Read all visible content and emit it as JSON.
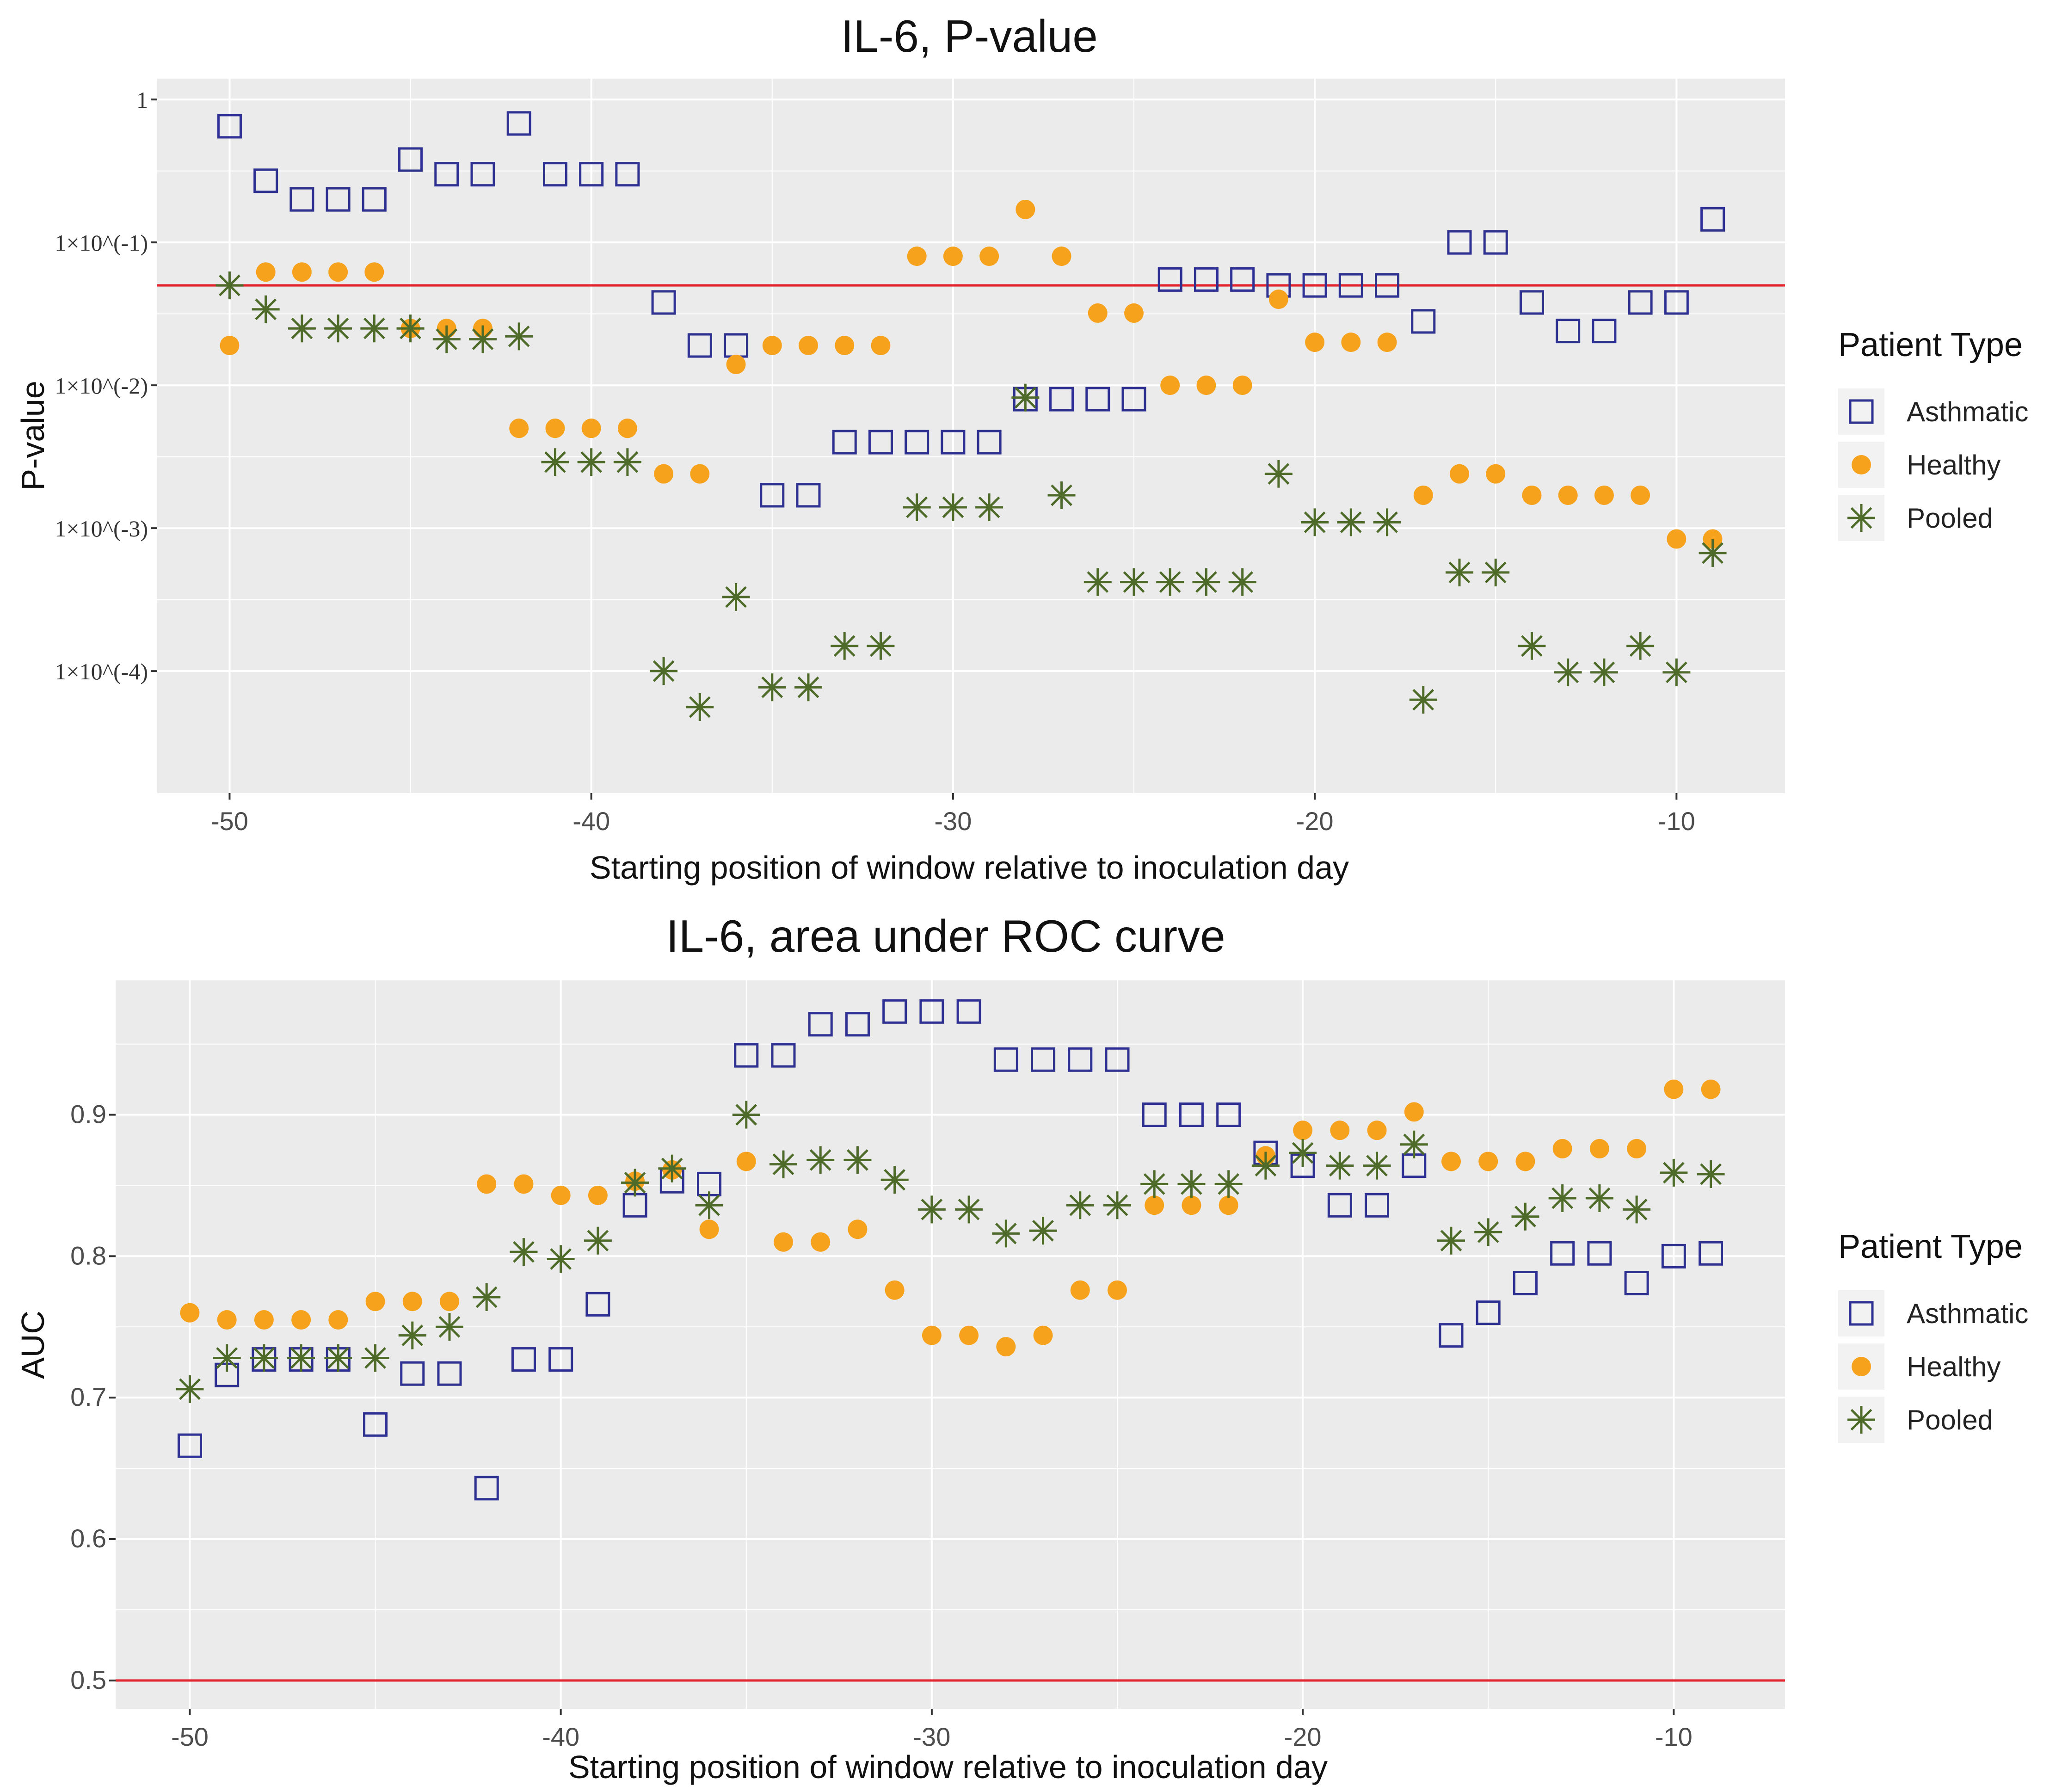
{
  "colors": {
    "panel": "#ebebeb",
    "grid_major": "#ffffff",
    "reference_line": "#e3262d",
    "asthmatic": "#2e3192",
    "healthy": "#f7a21d",
    "pooled": "#4f6b2a"
  },
  "legend": {
    "title": "Patient Type",
    "items": [
      {
        "label": "Asthmatic",
        "marker": "open-square-icon",
        "color": "#2e3192"
      },
      {
        "label": "Healthy",
        "marker": "filled-circle-icon",
        "color": "#f7a21d"
      },
      {
        "label": "Pooled",
        "marker": "asterisk-icon",
        "color": "#4f6b2a"
      }
    ]
  },
  "chart_data": [
    {
      "type": "scatter",
      "title": "IL-6, P-value",
      "xlabel": "Starting position of window relative to inoculation day",
      "ylabel": "P-value",
      "y_scale": "log10",
      "xlim": [
        -52,
        -7
      ],
      "ylim": [
        1.4e-05,
        1.4
      ],
      "x_ticks": [
        -50,
        -40,
        -30,
        -20,
        -10
      ],
      "x_tick_labels": [
        "-50",
        "-40",
        "-30",
        "-20",
        "-10"
      ],
      "y_ticks": [
        1,
        0.1,
        0.01,
        0.001,
        0.0001
      ],
      "y_tick_labels": [
        "1",
        "1×10^(-1)",
        "1×10^(-2)",
        "1×10^(-3)",
        "1×10^(-4)"
      ],
      "reference_line": {
        "axis": "y",
        "value": 0.05
      },
      "grid": true,
      "legend": "right",
      "series": [
        {
          "name": "Asthmatic",
          "marker": "open-square",
          "x": [
            -50,
            -49,
            -48,
            -47,
            -46,
            -45,
            -44,
            -43,
            -42,
            -41,
            -40,
            -39,
            -38,
            -37,
            -36,
            -35,
            -34,
            -33,
            -32,
            -31,
            -30,
            -29,
            -28,
            -27,
            -26,
            -25,
            -24,
            -23,
            -22,
            -21,
            -20,
            -19,
            -18,
            -17,
            -16,
            -15,
            -14,
            -13,
            -12,
            -11,
            -10,
            -9
          ],
          "y": [
            0.65,
            0.27,
            0.2,
            0.2,
            0.2,
            0.38,
            0.3,
            0.3,
            0.68,
            0.3,
            0.3,
            0.3,
            0.038,
            0.019,
            0.019,
            0.0017,
            0.0017,
            0.004,
            0.004,
            0.004,
            0.004,
            0.004,
            0.008,
            0.008,
            0.008,
            0.008,
            0.055,
            0.055,
            0.055,
            0.05,
            0.05,
            0.05,
            0.05,
            0.028,
            0.1,
            0.1,
            0.038,
            0.024,
            0.024,
            0.038,
            0.038,
            0.145
          ]
        },
        {
          "name": "Healthy",
          "marker": "filled-circle",
          "x": [
            -50,
            -49,
            -48,
            -47,
            -46,
            -45,
            -44,
            -43,
            -42,
            -41,
            -40,
            -39,
            -38,
            -37,
            -36,
            -35,
            -34,
            -33,
            -32,
            -31,
            -30,
            -29,
            -28,
            -27,
            -26,
            -25,
            -24,
            -23,
            -22,
            -21,
            -20,
            -19,
            -18,
            -17,
            -16,
            -15,
            -14,
            -13,
            -12,
            -11,
            -10,
            -9
          ],
          "y": [
            0.019,
            0.062,
            0.062,
            0.062,
            0.062,
            0.025,
            0.025,
            0.025,
            0.005,
            0.005,
            0.005,
            0.005,
            0.0024,
            0.0024,
            0.014,
            0.019,
            0.019,
            0.019,
            0.019,
            0.08,
            0.08,
            0.08,
            0.17,
            0.08,
            0.032,
            0.032,
            0.01,
            0.01,
            0.01,
            0.04,
            0.02,
            0.02,
            0.02,
            0.0017,
            0.0024,
            0.0024,
            0.0017,
            0.0017,
            0.0017,
            0.0017,
            0.00084,
            0.00084
          ]
        },
        {
          "name": "Pooled",
          "marker": "asterisk",
          "x": [
            -50,
            -49,
            -48,
            -47,
            -46,
            -45,
            -44,
            -43,
            -42,
            -41,
            -40,
            -39,
            -38,
            -37,
            -36,
            -35,
            -34,
            -33,
            -32,
            -31,
            -30,
            -29,
            -28,
            -27,
            -26,
            -25,
            -24,
            -23,
            -22,
            -21,
            -20,
            -19,
            -18,
            -17,
            -16,
            -15,
            -14,
            -13,
            -12,
            -11,
            -10,
            -9
          ],
          "y": [
            0.05,
            0.034,
            0.025,
            0.025,
            0.025,
            0.025,
            0.021,
            0.021,
            0.022,
            0.0029,
            0.0029,
            0.0029,
            0.0001,
            5.6e-05,
            0.00033,
            7.7e-05,
            7.7e-05,
            0.00015,
            0.00015,
            0.0014,
            0.0014,
            0.0014,
            0.0082,
            0.0017,
            0.00042,
            0.00042,
            0.00042,
            0.00042,
            0.00042,
            0.0024,
            0.0011,
            0.0011,
            0.0011,
            6.3e-05,
            0.00049,
            0.00049,
            0.00015,
            9.8e-05,
            9.8e-05,
            0.00015,
            9.8e-05,
            0.00067
          ]
        }
      ]
    },
    {
      "type": "scatter",
      "title": "IL-6, area under ROC curve",
      "xlabel": "Starting position of window relative to inoculation day",
      "ylabel": "AUC",
      "xlim": [
        -52,
        -7
      ],
      "ylim": [
        0.48,
        0.995
      ],
      "x_ticks": [
        -50,
        -40,
        -30,
        -20,
        -10
      ],
      "x_tick_labels": [
        "-50",
        "-40",
        "-30",
        "-20",
        "-10"
      ],
      "y_ticks": [
        0.5,
        0.6,
        0.7,
        0.8,
        0.9
      ],
      "y_tick_labels": [
        "0.5",
        "0.6",
        "0.7",
        "0.8",
        "0.9"
      ],
      "reference_line": {
        "axis": "y",
        "value": 0.5
      },
      "grid": true,
      "legend": "right",
      "series": [
        {
          "name": "Asthmatic",
          "marker": "open-square",
          "x": [
            -50,
            -49,
            -48,
            -47,
            -46,
            -45,
            -44,
            -43,
            -42,
            -41,
            -40,
            -39,
            -38,
            -37,
            -36,
            -35,
            -34,
            -33,
            -32,
            -31,
            -30,
            -29,
            -28,
            -27,
            -26,
            -25,
            -24,
            -23,
            -22,
            -21,
            -20,
            -19,
            -18,
            -17,
            -16,
            -15,
            -14,
            -13,
            -12,
            -11,
            -10,
            -9
          ],
          "y": [
            0.666,
            0.716,
            0.727,
            0.727,
            0.727,
            0.681,
            0.717,
            0.717,
            0.636,
            0.727,
            0.727,
            0.766,
            0.836,
            0.853,
            0.851,
            0.942,
            0.942,
            0.964,
            0.964,
            0.973,
            0.973,
            0.973,
            0.939,
            0.939,
            0.939,
            0.939,
            0.9,
            0.9,
            0.9,
            0.873,
            0.864,
            0.836,
            0.836,
            0.864,
            0.744,
            0.76,
            0.781,
            0.802,
            0.802,
            0.781,
            0.8,
            0.802
          ]
        },
        {
          "name": "Healthy",
          "marker": "filled-circle",
          "x": [
            -50,
            -49,
            -48,
            -47,
            -46,
            -45,
            -44,
            -43,
            -42,
            -41,
            -40,
            -39,
            -38,
            -37,
            -36,
            -35,
            -34,
            -33,
            -32,
            -31,
            -30,
            -29,
            -28,
            -27,
            -26,
            -25,
            -24,
            -23,
            -22,
            -21,
            -20,
            -19,
            -18,
            -17,
            -16,
            -15,
            -14,
            -13,
            -12,
            -11,
            -10,
            -9
          ],
          "y": [
            0.76,
            0.755,
            0.755,
            0.755,
            0.755,
            0.768,
            0.768,
            0.768,
            0.851,
            0.851,
            0.843,
            0.843,
            0.853,
            0.861,
            0.819,
            0.867,
            0.81,
            0.81,
            0.819,
            0.776,
            0.744,
            0.744,
            0.736,
            0.744,
            0.776,
            0.776,
            0.836,
            0.836,
            0.836,
            0.871,
            0.889,
            0.889,
            0.889,
            0.902,
            0.867,
            0.867,
            0.867,
            0.876,
            0.876,
            0.876,
            0.918,
            0.918
          ]
        },
        {
          "name": "Pooled",
          "marker": "asterisk",
          "x": [
            -50,
            -49,
            -48,
            -47,
            -46,
            -45,
            -44,
            -43,
            -42,
            -41,
            -40,
            -39,
            -38,
            -37,
            -36,
            -35,
            -34,
            -33,
            -32,
            -31,
            -30,
            -29,
            -28,
            -27,
            -26,
            -25,
            -24,
            -23,
            -22,
            -21,
            -20,
            -19,
            -18,
            -17,
            -16,
            -15,
            -14,
            -13,
            -12,
            -11,
            -10,
            -9
          ],
          "y": [
            0.706,
            0.728,
            0.728,
            0.728,
            0.728,
            0.728,
            0.744,
            0.75,
            0.771,
            0.803,
            0.798,
            0.811,
            0.852,
            0.862,
            0.836,
            0.9,
            0.865,
            0.868,
            0.868,
            0.854,
            0.833,
            0.833,
            0.816,
            0.818,
            0.836,
            0.836,
            0.851,
            0.851,
            0.851,
            0.864,
            0.873,
            0.864,
            0.864,
            0.879,
            0.811,
            0.817,
            0.828,
            0.841,
            0.841,
            0.833,
            0.859,
            0.858
          ]
        }
      ]
    }
  ]
}
